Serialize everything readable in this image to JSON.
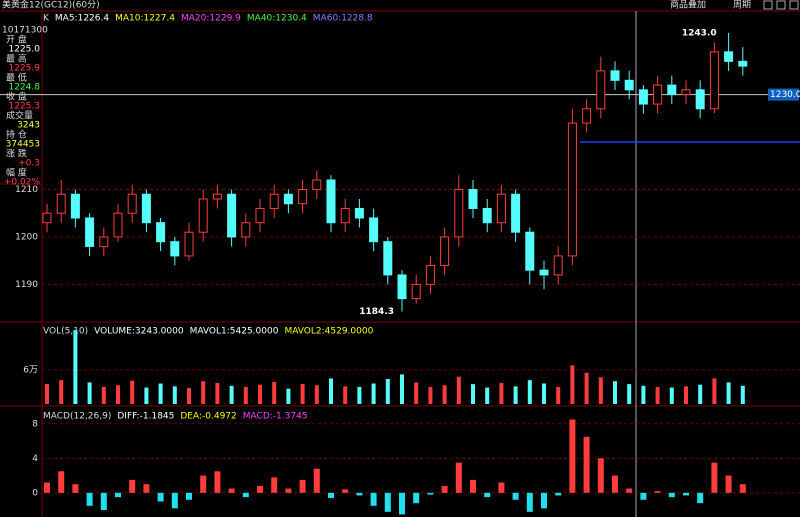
{
  "header": {
    "title": "美黄金12(GC12)(60分)",
    "buttons": [
      "商品叠加",
      "周期"
    ]
  },
  "info": {
    "datetime": "10171300",
    "rows": [
      {
        "label": "开 盘",
        "value": "1225.0",
        "color": "#ffffff"
      },
      {
        "label": "最 高",
        "value": "1225.9",
        "color": "#ff4040"
      },
      {
        "label": "最 低",
        "value": "1224.8",
        "color": "#40ff40"
      },
      {
        "label": "收 盘",
        "value": "1225.3",
        "color": "#ff4040"
      },
      {
        "label": "成交量",
        "value": "3243",
        "color": "#ffff40"
      },
      {
        "label": "持 仓",
        "value": "374453",
        "color": "#ffff40"
      },
      {
        "label": "涨 跌",
        "value": "+0.3",
        "color": "#ff4040"
      },
      {
        "label": "幅 度",
        "value": "+0.02%",
        "color": "#ff4040"
      }
    ]
  },
  "chart_data": [
    {
      "type": "candlestick",
      "title": "K",
      "legend": [
        {
          "label": "MA5:1226.4",
          "color": "#ffffff"
        },
        {
          "label": "MA10:1227.4",
          "color": "#ffff00"
        },
        {
          "label": "MA20:1229.9",
          "color": "#ff40ff"
        },
        {
          "label": "MA40:1230.4",
          "color": "#40ff40"
        },
        {
          "label": "MA60:1228.8",
          "color": "#8080ff"
        }
      ],
      "up_color": "#ff3c3c",
      "down_color": "#54fcfc",
      "open": [
        1203,
        1205,
        1209,
        1204,
        1198,
        1200,
        1205,
        1209,
        1203,
        1199,
        1196,
        1201,
        1208,
        1209,
        1200,
        1203,
        1206,
        1209,
        1207,
        1210,
        1212,
        1203,
        1206,
        1204,
        1199,
        1192,
        1187,
        1190,
        1194,
        1200,
        1210,
        1206,
        1203,
        1209,
        1201,
        1193,
        1192,
        1196,
        1224,
        1227,
        1235,
        1233,
        1231,
        1228,
        1232,
        1230,
        1231,
        1227,
        1239,
        1237
      ],
      "high": [
        1207,
        1212,
        1210,
        1205,
        1202,
        1207,
        1211,
        1210,
        1204,
        1200,
        1203,
        1210,
        1211,
        1210,
        1205,
        1208,
        1211,
        1210,
        1212,
        1214,
        1213,
        1208,
        1208,
        1206,
        1200,
        1193,
        1192,
        1196,
        1202,
        1213,
        1212,
        1208,
        1211,
        1210,
        1202,
        1195,
        1198,
        1227,
        1229,
        1238,
        1237,
        1235,
        1232,
        1234,
        1234,
        1233,
        1233,
        1241,
        1243,
        1240
      ],
      "low": [
        1201,
        1203,
        1202,
        1196,
        1196,
        1199,
        1203,
        1201,
        1197,
        1194,
        1195,
        1199,
        1206,
        1198,
        1198,
        1201,
        1204,
        1205,
        1205,
        1208,
        1201,
        1201,
        1202,
        1197,
        1190,
        1184.3,
        1186,
        1188,
        1192,
        1198,
        1204,
        1201,
        1201,
        1199,
        1190,
        1189,
        1190,
        1194,
        1222,
        1225,
        1231,
        1229,
        1226,
        1226,
        1228,
        1228,
        1225,
        1226,
        1235,
        1234
      ],
      "close": [
        1205,
        1209,
        1204,
        1198,
        1200,
        1205,
        1209,
        1203,
        1199,
        1196,
        1201,
        1208,
        1209,
        1200,
        1203,
        1206,
        1209,
        1207,
        1210,
        1212,
        1203,
        1206,
        1204,
        1199,
        1192,
        1187,
        1190,
        1194,
        1200,
        1210,
        1206,
        1203,
        1209,
        1201,
        1193,
        1192,
        1196,
        1224,
        1227,
        1235,
        1233,
        1231,
        1228,
        1232,
        1230,
        1231,
        1227,
        1239,
        1237,
        1236
      ],
      "max_label": {
        "value": 1243,
        "label": "1243.0"
      },
      "min_label": 1184.3,
      "price_line": {
        "value": 1230,
        "label": "1230.0"
      },
      "level_line": 1220,
      "ylim": [
        1182.5,
        1247.4
      ],
      "yticks": [
        1190,
        1200,
        1210
      ]
    },
    {
      "type": "bar",
      "title": "VOL(5,10)",
      "legend": [
        {
          "label": "VOLUME:3243.0000",
          "color": "#ffffff"
        },
        {
          "label": "MAVOL1:5425.0000",
          "color": "#ffffff"
        },
        {
          "label": "MAVOL2:4529.0000",
          "color": "#ffff00"
        }
      ],
      "values": [
        35000,
        42000,
        130000,
        38000,
        30000,
        33000,
        41000,
        29000,
        36000,
        31000,
        28000,
        40000,
        37000,
        32000,
        30000,
        34000,
        39000,
        27000,
        35000,
        33000,
        45000,
        31000,
        30000,
        36000,
        44000,
        52000,
        38000,
        30000,
        33000,
        48000,
        35000,
        29000,
        37000,
        31000,
        42000,
        36000,
        30000,
        68000,
        55000,
        47000,
        40000,
        35000,
        32000,
        30000,
        29000,
        31000,
        34000,
        45000,
        38000,
        32000
      ],
      "ylim": [
        0,
        139000
      ],
      "yticks": [
        {
          "value": 60000,
          "label": "6万"
        }
      ]
    },
    {
      "type": "bar",
      "title": "MACD(12,26,9)",
      "legend": [
        {
          "label": "DIFF:-1.1845",
          "color": "#ffffff"
        },
        {
          "label": "DEA:-0.4972",
          "color": "#ffff00"
        },
        {
          "label": "MACD:-1.3745",
          "color": "#ff40ff"
        }
      ],
      "pos_color": "#ff3c3c",
      "neg_color": "#20e0f0",
      "values": [
        1.2,
        2.5,
        1.0,
        -1.5,
        -2.0,
        -0.5,
        1.5,
        1.0,
        -1.0,
        -1.8,
        -0.8,
        2.0,
        2.5,
        0.5,
        -0.5,
        0.8,
        1.8,
        0.5,
        1.5,
        2.8,
        -0.6,
        0.4,
        -0.3,
        -1.5,
        -2.2,
        -2.5,
        -1.2,
        -0.2,
        0.8,
        3.5,
        1.5,
        -0.5,
        1.2,
        -0.8,
        -2.2,
        -1.8,
        -0.3,
        8.5,
        6.5,
        4.0,
        2.0,
        0.5,
        -0.8,
        0.2,
        -0.5,
        -0.3,
        -1.2,
        3.5,
        2.0,
        1.0
      ],
      "ylim": [
        -2.8,
        9.6
      ],
      "yticks": [
        0,
        4,
        8
      ]
    }
  ]
}
